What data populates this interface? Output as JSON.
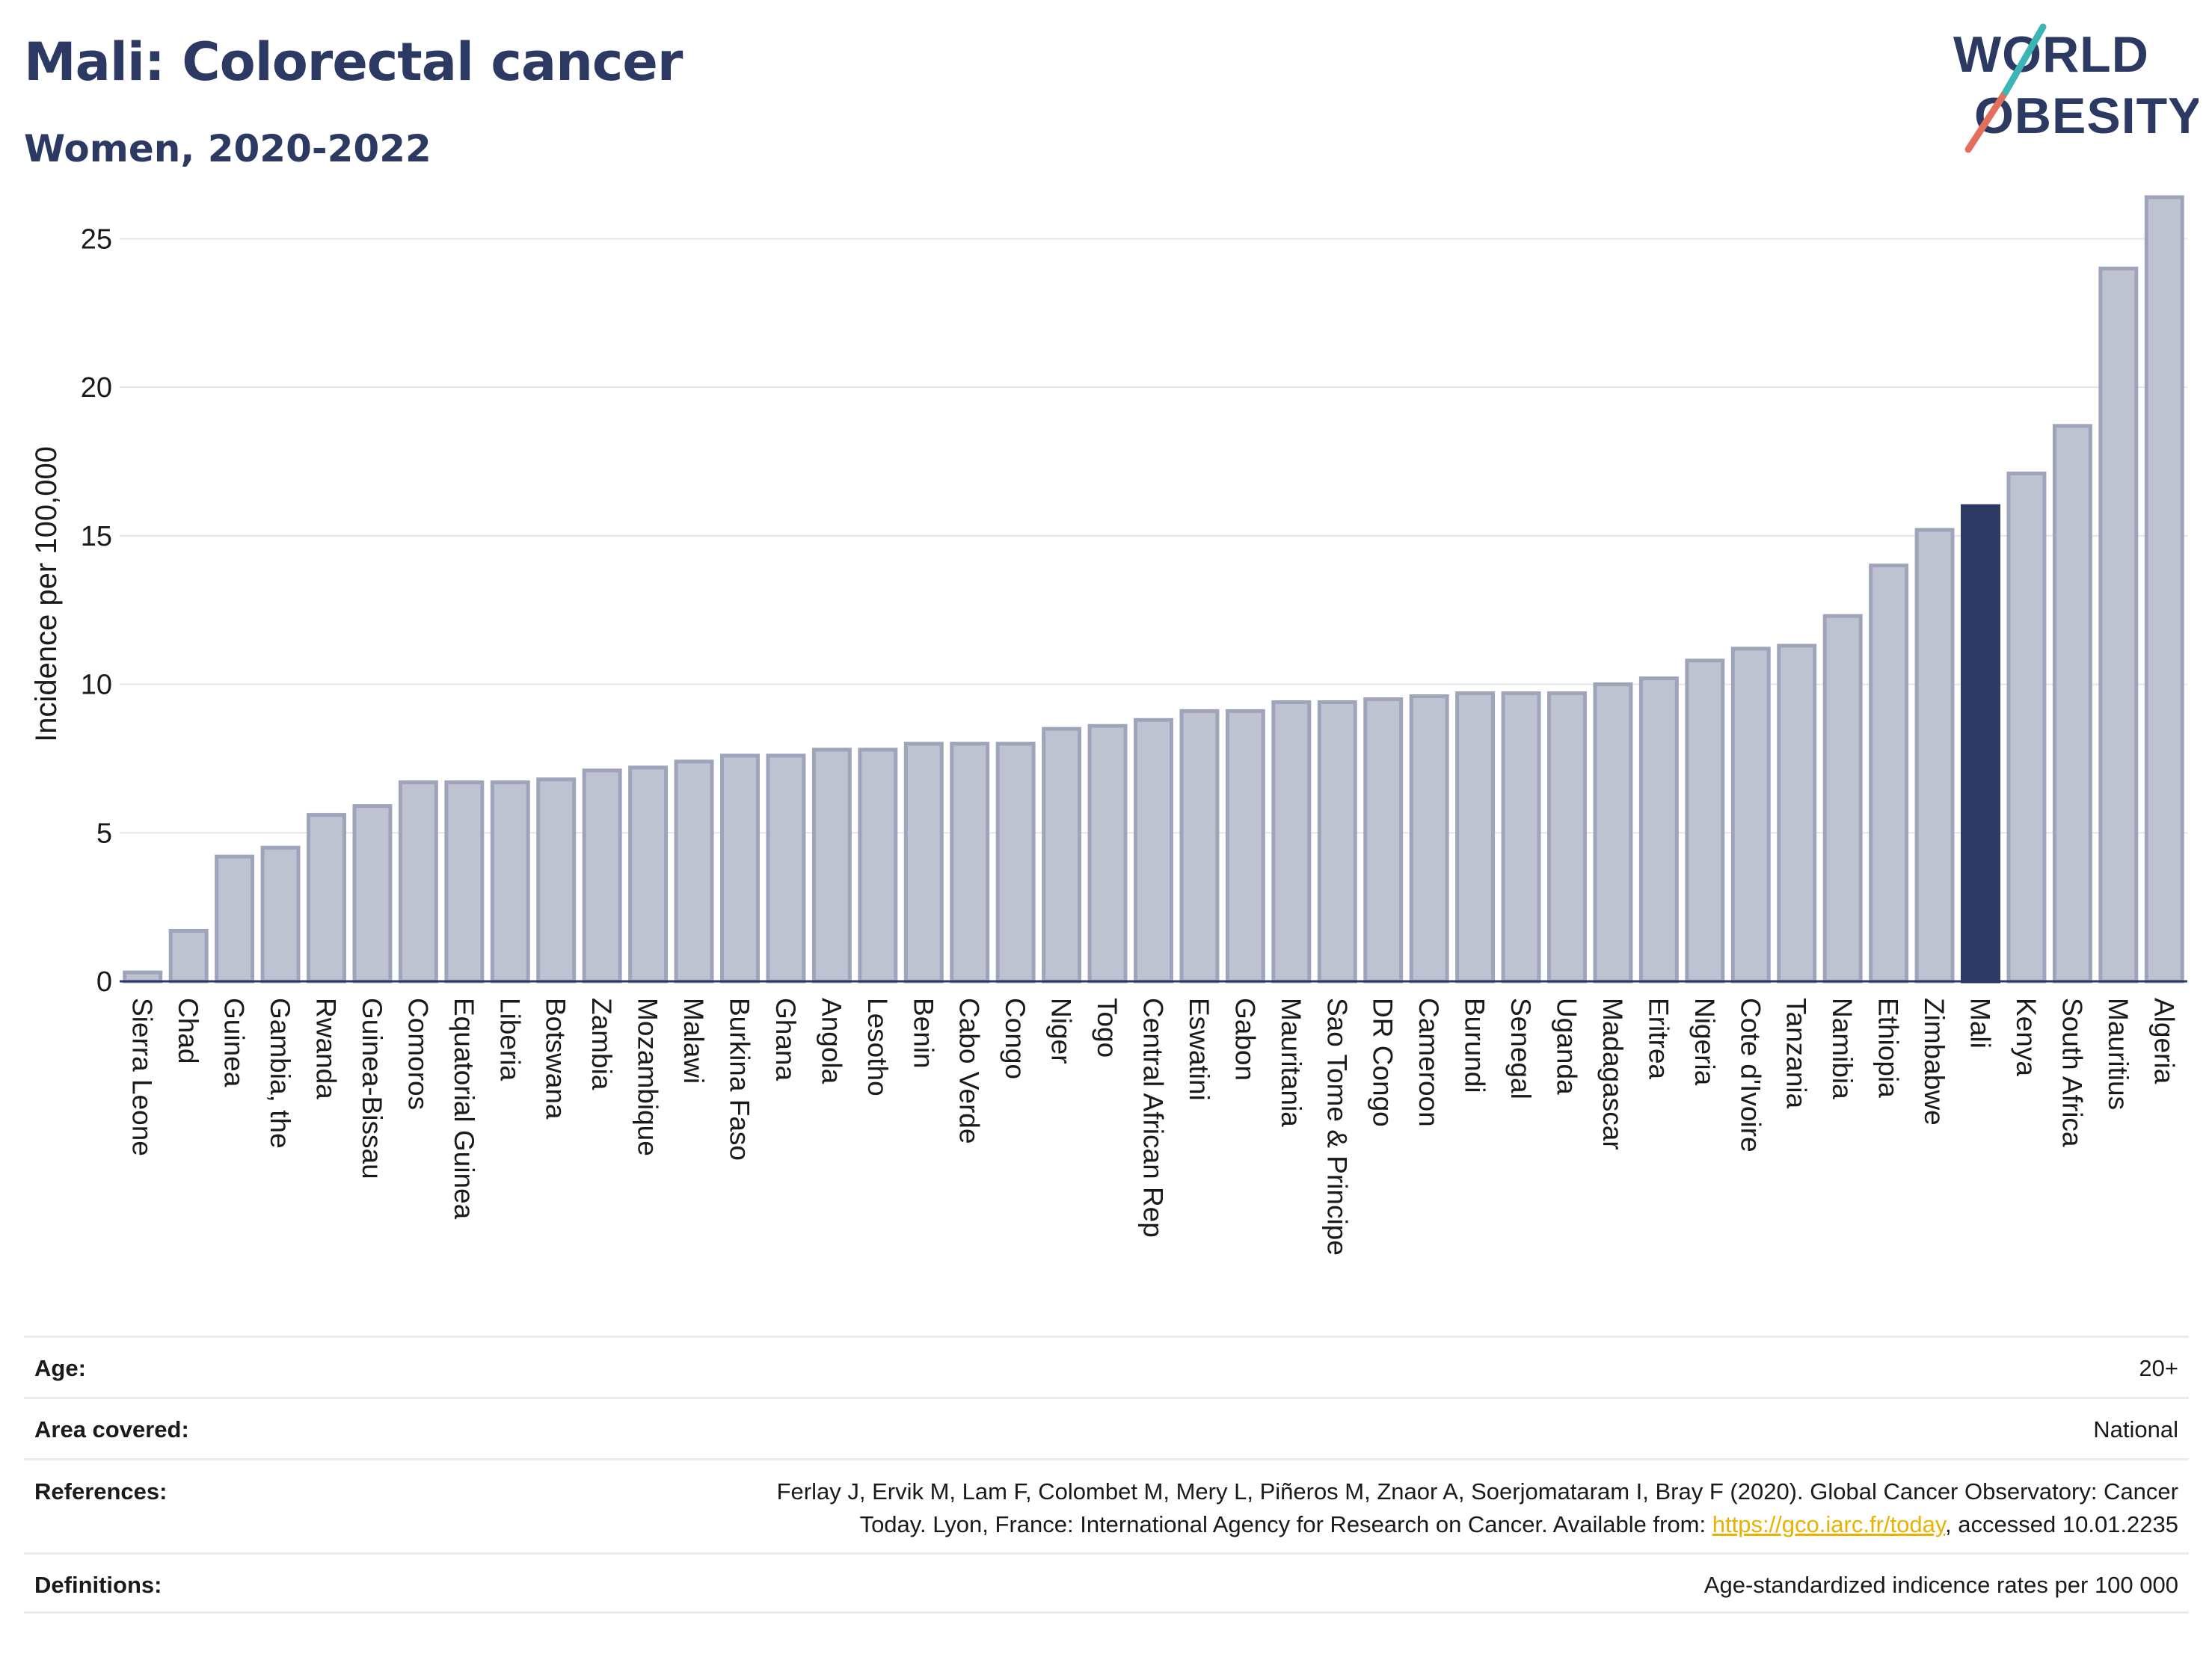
{
  "title": "Mali: Colorectal cancer",
  "subtitle": "Women, 2020-2022",
  "logo": {
    "line1": "WORLD",
    "line2": "OBESITY"
  },
  "colors": {
    "bar": "#bfc3d1",
    "bar_stroke": "#9ea4ba",
    "highlight": "#2c3a63",
    "title": "#2c3a63",
    "grid": "#e3e6ec",
    "link": "#e8b200"
  },
  "chart_data": {
    "type": "bar",
    "ylabel": "Incidence per 100,000",
    "xlabel": "",
    "ylim": [
      0,
      27
    ],
    "yticks": [
      0,
      5,
      10,
      15,
      20,
      25
    ],
    "grid": true,
    "highlight": "Mali",
    "categories": [
      "Sierra Leone",
      "Chad",
      "Guinea",
      "Gambia, the",
      "Rwanda",
      "Guinea-Bissau",
      "Comoros",
      "Equatorial Guinea",
      "Liberia",
      "Botswana",
      "Zambia",
      "Mozambique",
      "Malawi",
      "Burkina Faso",
      "Ghana",
      "Angola",
      "Lesotho",
      "Benin",
      "Cabo Verde",
      "Congo",
      "Niger",
      "Togo",
      "Central African Rep",
      "Eswatini",
      "Gabon",
      "Mauritania",
      "Sao Tome & Principe",
      "DR Congo",
      "Cameroon",
      "Burundi",
      "Senegal",
      "Uganda",
      "Madagascar",
      "Eritrea",
      "Nigeria",
      "Cote d'Ivoire",
      "Tanzania",
      "Namibia",
      "Ethiopia",
      "Zimbabwe",
      "Mali",
      "Kenya",
      "South Africa",
      "Mauritius",
      "Algeria"
    ],
    "values": [
      0.3,
      1.7,
      4.2,
      4.5,
      5.6,
      5.9,
      6.7,
      6.7,
      6.7,
      6.8,
      7.1,
      7.2,
      7.4,
      7.6,
      7.6,
      7.8,
      7.8,
      8.0,
      8.0,
      8.0,
      8.5,
      8.6,
      8.8,
      9.1,
      9.1,
      9.4,
      9.4,
      9.5,
      9.6,
      9.7,
      9.7,
      9.7,
      10.0,
      10.2,
      10.8,
      11.2,
      11.3,
      12.3,
      14.0,
      15.2,
      16.0,
      17.1,
      18.7,
      24.0,
      26.4
    ]
  },
  "meta": {
    "age": {
      "label": "Age:",
      "value": "20+"
    },
    "area": {
      "label": "Area covered:",
      "value": "National"
    },
    "references": {
      "label": "References:",
      "line1": "Ferlay J, Ervik M, Lam F, Colombet M, Mery L, Piñeros M, Znaor A, Soerjomataram I, Bray F (2020). Global Cancer Observatory: Cancer",
      "line2_pre": "Today. Lyon, France: International Agency for Research on Cancer. Available from: ",
      "link": "https://gco.iarc.fr/today",
      "line2_post": ", accessed 10.01.2235"
    },
    "definitions": {
      "label": "Definitions:",
      "value": "Age-standardized indicence rates per 100 000"
    }
  }
}
